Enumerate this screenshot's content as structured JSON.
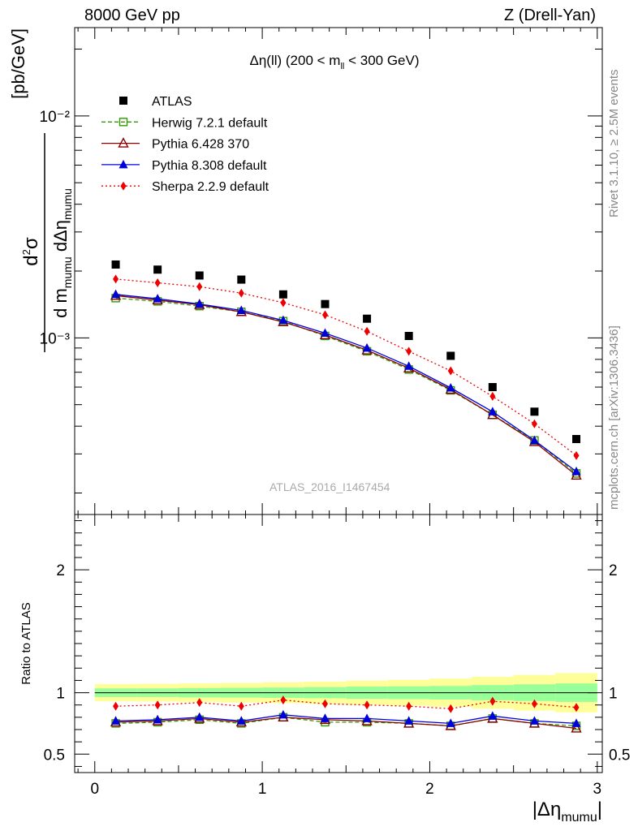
{
  "header": {
    "left": "8000 GeV pp",
    "right": "Z (Drell-Yan)"
  },
  "side_text": {
    "rivet": "Rivet 3.1.10, ≥ 2.5M events",
    "mcplots": "mcplots.cern.ch [arXiv:1306.3436]"
  },
  "watermark": "ATLAS_2016_I1467454",
  "colors": {
    "atlas": "#000000",
    "herwig": "#339900",
    "pythia6": "#880000",
    "pythia8": "#0000dd",
    "sherpa": "#ee0000",
    "band_inner": "#99ff99",
    "band_outer": "#ffff99"
  },
  "chart_data": [
    {
      "type": "line",
      "title": "Δη(ll) (200 < m_ll < 300 GeV)",
      "ylabel": "d²σ / d m_mumu dΔη_mumu [pb/GeV]",
      "yscale": "log",
      "ylim": [
        0.00016,
        0.025
      ],
      "xlim": [
        -0.12,
        3.03
      ],
      "yticks": [
        {
          "value": 0.001,
          "label": "10⁻³"
        },
        {
          "value": 0.01,
          "label": "10⁻²"
        }
      ],
      "legend_placement": "top-left",
      "x": [
        0.125,
        0.375,
        0.625,
        0.875,
        1.125,
        1.375,
        1.625,
        1.875,
        2.125,
        2.375,
        2.625,
        2.875
      ],
      "series": [
        {
          "name": "ATLAS",
          "key": "atlas",
          "marker": "square",
          "line": "none",
          "values": [
            0.00214,
            0.00203,
            0.00191,
            0.00183,
            0.00157,
            0.00142,
            0.00122,
            0.00102,
            0.00083,
            0.0006,
            0.000465,
            0.00035
          ]
        },
        {
          "name": "Herwig 7.2.1 default",
          "key": "herwig",
          "marker": "open-square",
          "line": "dashed",
          "values": [
            0.00151,
            0.00146,
            0.00139,
            0.00131,
            0.00119,
            0.00102,
            0.00087,
            0.00072,
            0.00058,
            0.00045,
            0.000345,
            0.000245
          ]
        },
        {
          "name": "Pythia 6.428 370",
          "key": "pythia6",
          "marker": "open-triangle",
          "line": "solid",
          "values": [
            0.00155,
            0.00148,
            0.00141,
            0.00131,
            0.00118,
            0.00103,
            0.00088,
            0.00073,
            0.000585,
            0.00045,
            0.00034,
            0.00024
          ]
        },
        {
          "name": "Pythia 8.308 default",
          "key": "pythia8",
          "marker": "triangle",
          "line": "solid",
          "values": [
            0.00157,
            0.0015,
            0.00142,
            0.00133,
            0.0012,
            0.00105,
            0.0009,
            0.000745,
            0.000595,
            0.000465,
            0.000345,
            0.00025
          ]
        },
        {
          "name": "Sherpa 2.2.9 default",
          "key": "sherpa",
          "marker": "diamond",
          "line": "dotted",
          "values": [
            0.00184,
            0.00177,
            0.0017,
            0.00159,
            0.00144,
            0.00127,
            0.00107,
            0.00087,
            0.00071,
            0.000545,
            0.00041,
            0.000295
          ]
        }
      ]
    },
    {
      "type": "line",
      "ylabel": "Ratio to ATLAS",
      "xlabel": "|Δη_mumu|",
      "ylim": [
        0.35,
        2.45
      ],
      "xlim": [
        -0.12,
        3.03
      ],
      "xticks": [
        0,
        1,
        2,
        3
      ],
      "yticks": [
        0.5,
        1,
        2
      ],
      "reference": 1,
      "band": {
        "x_edges": [
          0,
          0.25,
          0.5,
          0.75,
          1.0,
          1.25,
          1.5,
          1.75,
          2.0,
          2.25,
          2.5,
          2.75,
          3.0
        ],
        "inner": [
          0.035,
          0.035,
          0.038,
          0.04,
          0.042,
          0.045,
          0.05,
          0.052,
          0.055,
          0.062,
          0.068,
          0.075
        ],
        "outer": [
          0.07,
          0.072,
          0.076,
          0.08,
          0.085,
          0.09,
          0.098,
          0.105,
          0.115,
          0.13,
          0.145,
          0.16
        ]
      },
      "x": [
        0.125,
        0.375,
        0.625,
        0.875,
        1.125,
        1.375,
        1.625,
        1.875,
        2.125,
        2.375,
        2.625,
        2.875
      ],
      "series": [
        {
          "key": "herwig",
          "marker": "open-square",
          "line": "dashed",
          "values": [
            0.75,
            0.76,
            0.78,
            0.75,
            0.8,
            0.76,
            0.76,
            0.75,
            0.73,
            0.79,
            0.75,
            0.73
          ]
        },
        {
          "key": "pythia6",
          "marker": "open-triangle",
          "line": "solid",
          "values": [
            0.76,
            0.77,
            0.79,
            0.76,
            0.8,
            0.78,
            0.77,
            0.75,
            0.73,
            0.79,
            0.75,
            0.71
          ]
        },
        {
          "key": "pythia8",
          "marker": "triangle",
          "line": "solid",
          "values": [
            0.77,
            0.78,
            0.8,
            0.77,
            0.82,
            0.79,
            0.79,
            0.77,
            0.75,
            0.81,
            0.77,
            0.75
          ]
        },
        {
          "key": "sherpa",
          "marker": "diamond",
          "line": "dotted",
          "values": [
            0.89,
            0.9,
            0.92,
            0.89,
            0.94,
            0.91,
            0.9,
            0.89,
            0.87,
            0.93,
            0.91,
            0.88
          ]
        }
      ]
    }
  ]
}
